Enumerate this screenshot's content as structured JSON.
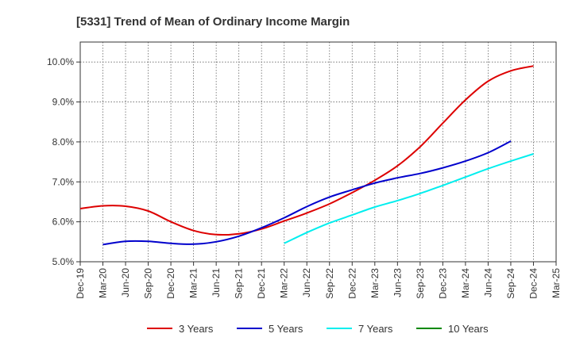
{
  "chart_data": {
    "type": "line",
    "title": "[5331]  Trend of Mean of Ordinary Income Margin",
    "xlabel": "",
    "ylabel": "",
    "x_tick_labels": [
      "Dec-19",
      "Mar-20",
      "Jun-20",
      "Sep-20",
      "Dec-20",
      "Mar-21",
      "Jun-21",
      "Sep-21",
      "Dec-21",
      "Mar-22",
      "Jun-22",
      "Sep-22",
      "Dec-22",
      "Mar-23",
      "Jun-23",
      "Sep-23",
      "Dec-23",
      "Mar-24",
      "Jun-24",
      "Sep-24",
      "Dec-24",
      "Mar-25"
    ],
    "y_ticks": [
      5.0,
      6.0,
      7.0,
      8.0,
      9.0,
      10.0
    ],
    "y_tick_labels": [
      "5.0%",
      "6.0%",
      "7.0%",
      "8.0%",
      "9.0%",
      "10.0%"
    ],
    "ylim": [
      5.0,
      10.5
    ],
    "grid": true,
    "legend_position": "bottom",
    "series": [
      {
        "name": "3 Years",
        "color": "#dd0000",
        "start_index": 0,
        "values": [
          6.33,
          6.4,
          6.39,
          6.27,
          6.0,
          5.78,
          5.68,
          5.7,
          5.82,
          6.02,
          6.22,
          6.45,
          6.73,
          7.04,
          7.4,
          7.88,
          8.47,
          9.05,
          9.52,
          9.78,
          9.9
        ]
      },
      {
        "name": "5 Years",
        "color": "#0000cc",
        "start_index": 1,
        "values": [
          5.43,
          5.51,
          5.51,
          5.46,
          5.44,
          5.5,
          5.64,
          5.85,
          6.1,
          6.38,
          6.62,
          6.8,
          6.97,
          7.1,
          7.21,
          7.35,
          7.52,
          7.73,
          8.02
        ]
      },
      {
        "name": "7 Years",
        "color": "#00eeee",
        "start_index": 9,
        "values": [
          5.46,
          5.73,
          5.97,
          6.17,
          6.37,
          6.53,
          6.71,
          6.91,
          7.12,
          7.33,
          7.52,
          7.7
        ]
      },
      {
        "name": "10 Years",
        "color": "#008800",
        "start_index": 0,
        "values": []
      }
    ]
  }
}
